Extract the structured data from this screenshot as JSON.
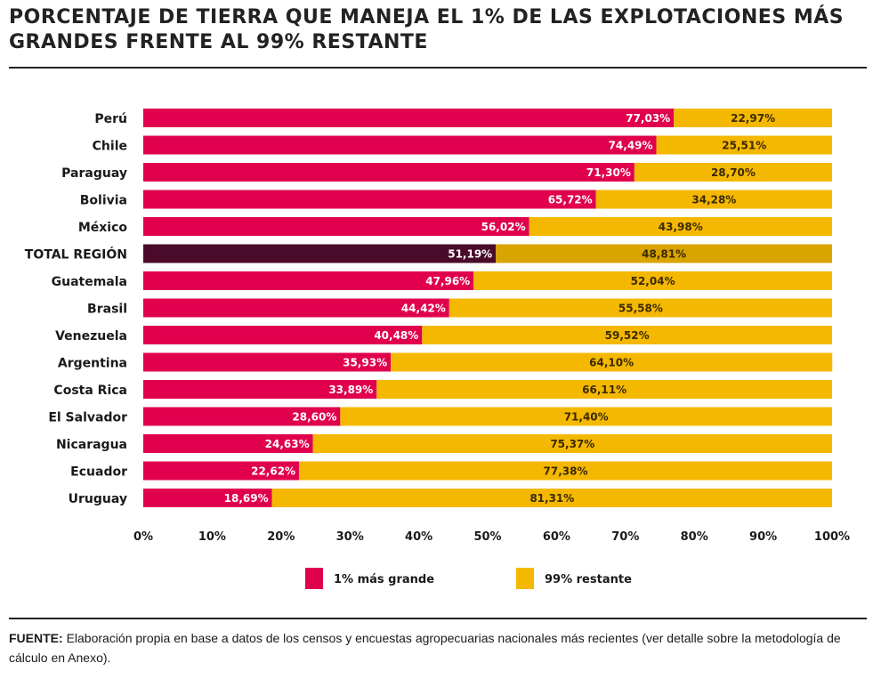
{
  "title": "PORCENTAJE DE TIERRA QUE MANEJA EL 1% DE LAS EXPLOTACIONES MÁS GRANDES FRENTE AL 99% RESTANTE",
  "source": {
    "label": "FUENTE:",
    "text": "Elaboración propia en base a datos de los censos y encuestas agropecuarias nacionales más recientes (ver detalle sobre la metodología de cálculo en Anexo)."
  },
  "colors": {
    "top1": "#e0004d",
    "rest99": "#f5b800",
    "total_top1": "#4a0a2a",
    "total_rest99": "#d9a300"
  },
  "chart_data": {
    "type": "bar",
    "orientation": "horizontal",
    "stacked": true,
    "categories": [
      "Perú",
      "Chile",
      "Paraguay",
      "Bolivia",
      "México",
      "TOTAL REGIÓN",
      "Guatemala",
      "Brasil",
      "Venezuela",
      "Argentina",
      "Costa Rica",
      "El Salvador",
      "Nicaragua",
      "Ecuador",
      "Uruguay"
    ],
    "highlight_category": "TOTAL REGIÓN",
    "series": [
      {
        "name": "1% más grande",
        "values": [
          77.03,
          74.49,
          71.3,
          65.72,
          56.02,
          51.19,
          47.96,
          44.42,
          40.48,
          35.93,
          33.89,
          28.6,
          24.63,
          22.62,
          18.69
        ],
        "labels": [
          "77,03%",
          "74,49%",
          "71,30%",
          "65,72%",
          "56,02%",
          "51,19%",
          "47,96%",
          "44,42%",
          "40,48%",
          "35,93%",
          "33,89%",
          "28,60%",
          "24,63%",
          "22,62%",
          "18,69%"
        ]
      },
      {
        "name": "99% restante",
        "values": [
          22.97,
          25.51,
          28.7,
          34.28,
          43.98,
          48.81,
          52.04,
          55.58,
          59.52,
          64.1,
          66.11,
          71.4,
          75.37,
          77.38,
          81.31
        ],
        "labels": [
          "22,97%",
          "25,51%",
          "28,70%",
          "34,28%",
          "43,98%",
          "48,81%",
          "52,04%",
          "55,58%",
          "59,52%",
          "64,10%",
          "66,11%",
          "71,40%",
          "75,37%",
          "77,38%",
          "81,31%"
        ]
      }
    ],
    "xlim": [
      0,
      100
    ],
    "x_ticks": [
      0,
      10,
      20,
      30,
      40,
      50,
      60,
      70,
      80,
      90,
      100
    ],
    "x_tick_labels": [
      "0%",
      "10%",
      "20%",
      "30%",
      "40%",
      "50%",
      "60%",
      "70%",
      "80%",
      "90%",
      "100%"
    ],
    "xlabel": "",
    "ylabel": "",
    "grid": false,
    "legend": "bottom"
  }
}
